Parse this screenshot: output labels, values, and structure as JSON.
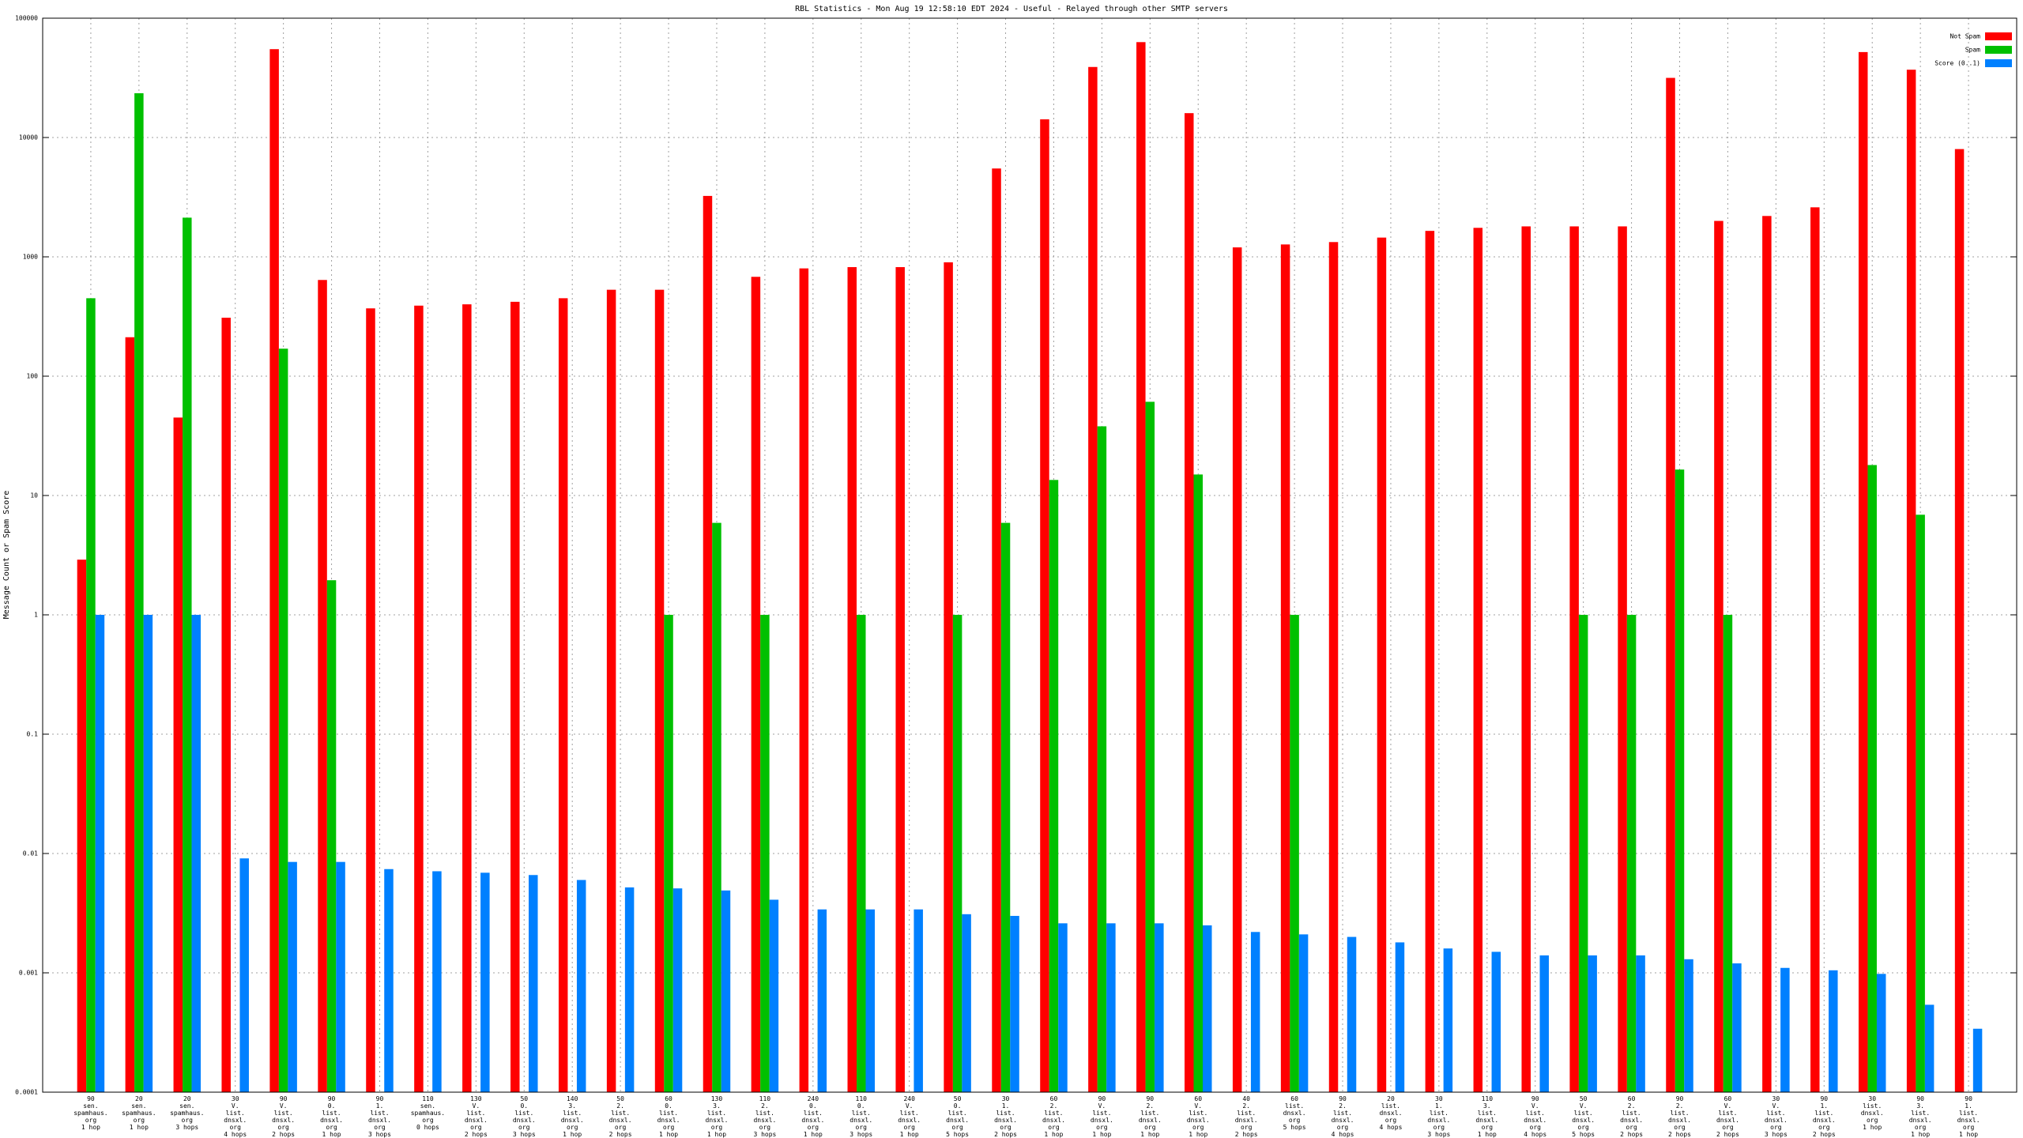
{
  "chart_data": {
    "type": "bar",
    "title": "RBL Statistics - Mon Aug 19 12:58:10 EDT 2024 - Useful - Relayed through other SMTP servers",
    "y_label": "Message Count or Spam Score",
    "log_scale": true,
    "grid": true,
    "legend": "top-right",
    "ylim": [
      0.0001,
      100000
    ],
    "yticks": [
      0.0001,
      0.001,
      0.01,
      0.1,
      1,
      10,
      100,
      1000,
      10000,
      100000
    ],
    "categories": [
      [
        "90",
        "sen.",
        "spamhaus.",
        "org",
        "1 hop"
      ],
      [
        "20",
        "sen.",
        "spamhaus.",
        "org",
        "1 hop"
      ],
      [
        "20",
        "sen.",
        "spamhaus.",
        "org",
        "3 hops"
      ],
      [
        "30",
        "V.",
        "list.",
        "dnsxl.",
        "org",
        "4 hops"
      ],
      [
        "90",
        "V.",
        "list.",
        "dnsxl.",
        "org",
        "2 hops"
      ],
      [
        "90",
        "0.",
        "list.",
        "dnsxl.",
        "org",
        "1 hop"
      ],
      [
        "90",
        "1.",
        "list.",
        "dnsxl.",
        "org",
        "3 hops"
      ],
      [
        "110",
        "sen.",
        "spamhaus.",
        "org",
        "0 hops"
      ],
      [
        "130",
        "V.",
        "list.",
        "dnsxl.",
        "org",
        "2 hops"
      ],
      [
        "50",
        "0.",
        "list.",
        "dnsxl.",
        "org",
        "3 hops"
      ],
      [
        "140",
        "3.",
        "list.",
        "dnsxl.",
        "org",
        "1 hop"
      ],
      [
        "50",
        "2.",
        "list.",
        "dnsxl.",
        "org",
        "2 hops"
      ],
      [
        "60",
        "0.",
        "list.",
        "dnsxl.",
        "org",
        "1 hop"
      ],
      [
        "130",
        "3.",
        "list.",
        "dnsxl.",
        "org",
        "1 hop"
      ],
      [
        "110",
        "2.",
        "list.",
        "dnsxl.",
        "org",
        "3 hops"
      ],
      [
        "240",
        "0.",
        "list.",
        "dnsxl.",
        "org",
        "1 hop"
      ],
      [
        "110",
        "0.",
        "list.",
        "dnsxl.",
        "org",
        "3 hops"
      ],
      [
        "240",
        "V.",
        "list.",
        "dnsxl.",
        "org",
        "1 hop"
      ],
      [
        "50",
        "0.",
        "list.",
        "dnsxl.",
        "org",
        "5 hops"
      ],
      [
        "30",
        "1.",
        "list.",
        "dnsxl.",
        "org",
        "2 hops"
      ],
      [
        "60",
        "2.",
        "list.",
        "dnsxl.",
        "org",
        "1 hop"
      ],
      [
        "90",
        "V.",
        "list.",
        "dnsxl.",
        "org",
        "1 hop"
      ],
      [
        "90",
        "2.",
        "list.",
        "dnsxl.",
        "org",
        "1 hop"
      ],
      [
        "60",
        "V.",
        "list.",
        "dnsxl.",
        "org",
        "1 hop"
      ],
      [
        "40",
        "2.",
        "list.",
        "dnsxl.",
        "org",
        "2 hops"
      ],
      [
        "60",
        "list.",
        "dnsxl.",
        "org",
        "5 hops"
      ],
      [
        "90",
        "2.",
        "list.",
        "dnsxl.",
        "org",
        "4 hops"
      ],
      [
        "20",
        "list.",
        "dnsxl.",
        "org",
        "4 hops"
      ],
      [
        "30",
        "1.",
        "list.",
        "dnsxl.",
        "org",
        "3 hops"
      ],
      [
        "110",
        "3.",
        "list.",
        "dnsxl.",
        "org",
        "1 hop"
      ],
      [
        "90",
        "V.",
        "list.",
        "dnsxl.",
        "org",
        "4 hops"
      ],
      [
        "50",
        "V.",
        "list.",
        "dnsxl.",
        "org",
        "5 hops"
      ],
      [
        "60",
        "2.",
        "list.",
        "dnsxl.",
        "org",
        "2 hops"
      ],
      [
        "90",
        "2.",
        "list.",
        "dnsxl.",
        "org",
        "2 hops"
      ],
      [
        "60",
        "V.",
        "list.",
        "dnsxl.",
        "org",
        "2 hops"
      ],
      [
        "30",
        "V.",
        "list.",
        "dnsxl.",
        "org",
        "3 hops"
      ],
      [
        "90",
        "1.",
        "list.",
        "dnsxl.",
        "org",
        "2 hops"
      ],
      [
        "30",
        "list.",
        "dnsxl.",
        "org",
        "1 hop"
      ],
      [
        "90",
        "3.",
        "list.",
        "dnsxl.",
        "org",
        "1 hop"
      ],
      [
        "90",
        "1.",
        "list.",
        "dnsxl.",
        "org",
        "1 hop"
      ]
    ],
    "series": [
      {
        "name": "Not Spam",
        "color": "#ff0000",
        "values": [
          2.9,
          212,
          45,
          309,
          55000,
          640,
          370,
          390,
          400,
          420,
          450,
          530,
          530,
          3240,
          680,
          800,
          820,
          820,
          900,
          5500,
          14200,
          39000,
          63000,
          16000,
          1200,
          1270,
          1330,
          1450,
          1650,
          1750,
          1800,
          1800,
          1800,
          31600,
          2000,
          2200,
          2600,
          52000,
          37000,
          8000
        ]
      },
      {
        "name": "Spam",
        "color": "#00c000",
        "values": [
          450,
          23500,
          2130,
          null,
          170,
          1.95,
          null,
          null,
          null,
          null,
          null,
          null,
          1,
          5.9,
          1,
          null,
          1,
          null,
          1,
          5.9,
          13.5,
          38,
          61,
          15,
          null,
          1,
          null,
          null,
          null,
          null,
          null,
          1,
          1,
          16.5,
          1,
          null,
          null,
          18,
          6.9,
          null
        ]
      },
      {
        "name": "Score (0..1)",
        "color": "#0080ff",
        "values": [
          1,
          1,
          1,
          0.0091,
          0.0085,
          0.0085,
          0.0074,
          0.0071,
          0.0069,
          0.0066,
          0.006,
          0.0052,
          0.0051,
          0.0049,
          0.0041,
          0.0034,
          0.0034,
          0.0034,
          0.0031,
          0.003,
          0.0026,
          0.0026,
          0.0026,
          0.0025,
          0.0022,
          0.0021,
          0.002,
          0.0018,
          0.0016,
          0.0015,
          0.0014,
          0.0014,
          0.0014,
          0.0013,
          0.0012,
          0.0011,
          0.00105,
          0.00098,
          0.00054,
          0.00034
        ]
      }
    ]
  }
}
